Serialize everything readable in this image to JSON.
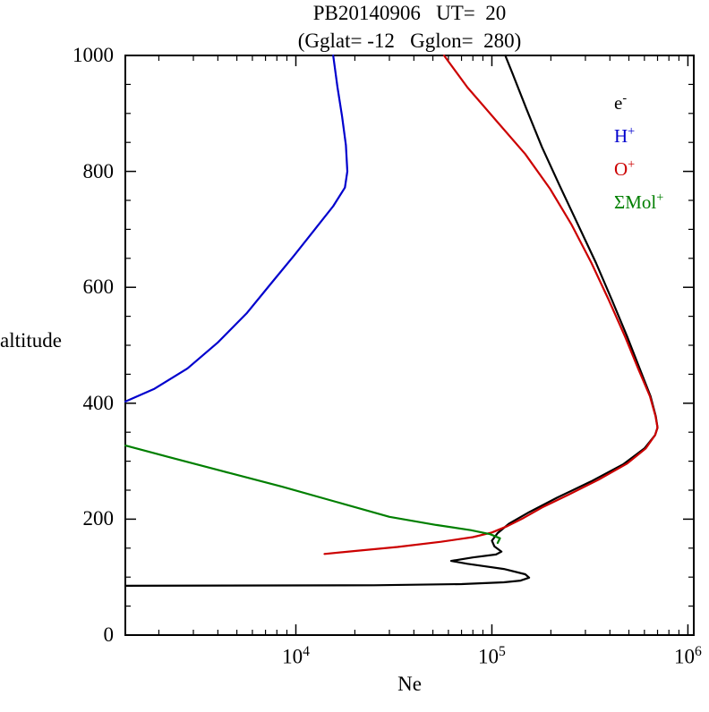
{
  "chart_data": {
    "type": "line",
    "title": "PB20140906   UT=  20",
    "subtitle": "(Gglat= -12   Gglon=  280)",
    "xlabel": "Ne",
    "ylabel": "altitude",
    "x_scale": "log",
    "x_range_log10": [
      3.13,
      6.03
    ],
    "ylim": [
      0,
      1000
    ],
    "y_major_ticks": [
      0,
      200,
      400,
      600,
      800,
      1000
    ],
    "y_minor_step": 50,
    "x_labeled_exponents": [
      4,
      5,
      6
    ],
    "grid": false,
    "legend_position": "top-right-inside",
    "legend": [
      {
        "base": "e",
        "sup": "-",
        "color": "#000000"
      },
      {
        "base": "H",
        "sup": "+",
        "color": "#0000cd"
      },
      {
        "base": "O",
        "sup": "+",
        "color": "#cc0000"
      },
      {
        "base": "ΣMol",
        "sup": "+",
        "color": "#007f00"
      }
    ],
    "series": [
      {
        "name": "e-",
        "color": "#000000",
        "points": [
          [
            1350,
            85
          ],
          [
            25000,
            86
          ],
          [
            70000,
            88
          ],
          [
            115000,
            91
          ],
          [
            140000,
            94
          ],
          [
            155000,
            99
          ],
          [
            148000,
            105
          ],
          [
            115000,
            114
          ],
          [
            75000,
            123
          ],
          [
            62000,
            128
          ],
          [
            80000,
            134
          ],
          [
            105000,
            139
          ],
          [
            112000,
            144
          ],
          [
            103000,
            153
          ],
          [
            100000,
            163
          ],
          [
            107000,
            176
          ],
          [
            122000,
            192
          ],
          [
            155000,
            212
          ],
          [
            215000,
            237
          ],
          [
            320000,
            265
          ],
          [
            470000,
            295
          ],
          [
            600000,
            322
          ],
          [
            680000,
            345
          ],
          [
            700000,
            358
          ],
          [
            685000,
            378
          ],
          [
            645000,
            412
          ],
          [
            570000,
            458
          ],
          [
            490000,
            515
          ],
          [
            410000,
            578
          ],
          [
            340000,
            642
          ],
          [
            275000,
            708
          ],
          [
            222000,
            775
          ],
          [
            180000,
            842
          ],
          [
            150000,
            908
          ],
          [
            127000,
            970
          ],
          [
            117000,
            1000
          ]
        ]
      },
      {
        "name": "H+",
        "color": "#0000cd",
        "points": [
          [
            1350,
            403
          ],
          [
            1900,
            425
          ],
          [
            2800,
            460
          ],
          [
            4000,
            505
          ],
          [
            5600,
            555
          ],
          [
            7400,
            605
          ],
          [
            9800,
            655
          ],
          [
            12500,
            700
          ],
          [
            15500,
            740
          ],
          [
            17800,
            772
          ],
          [
            18300,
            800
          ],
          [
            18000,
            845
          ],
          [
            17200,
            895
          ],
          [
            16300,
            945
          ],
          [
            15500,
            1000
          ]
        ]
      },
      {
        "name": "O+",
        "color": "#cc0000",
        "points": [
          [
            14000,
            140
          ],
          [
            20000,
            145
          ],
          [
            33000,
            152
          ],
          [
            55000,
            161
          ],
          [
            80000,
            169
          ],
          [
            100000,
            177
          ],
          [
            120000,
            188
          ],
          [
            145000,
            202
          ],
          [
            180000,
            220
          ],
          [
            245000,
            242
          ],
          [
            350000,
            268
          ],
          [
            490000,
            296
          ],
          [
            610000,
            322
          ],
          [
            680000,
            345
          ],
          [
            700000,
            358
          ],
          [
            683000,
            378
          ],
          [
            640000,
            412
          ],
          [
            560000,
            458
          ],
          [
            478000,
            515
          ],
          [
            395000,
            578
          ],
          [
            322000,
            642
          ],
          [
            255000,
            708
          ],
          [
            198000,
            770
          ],
          [
            148000,
            830
          ],
          [
            105000,
            888
          ],
          [
            75000,
            945
          ],
          [
            57000,
            1000
          ]
        ]
      },
      {
        "name": "Mol+",
        "color": "#007f00",
        "points": [
          [
            1350,
            327
          ],
          [
            2200,
            308
          ],
          [
            4200,
            283
          ],
          [
            8500,
            256
          ],
          [
            16000,
            230
          ],
          [
            30000,
            204
          ],
          [
            52000,
            190
          ],
          [
            78000,
            181
          ],
          [
            98000,
            174
          ],
          [
            110000,
            167
          ],
          [
            107000,
            159
          ]
        ]
      }
    ]
  }
}
